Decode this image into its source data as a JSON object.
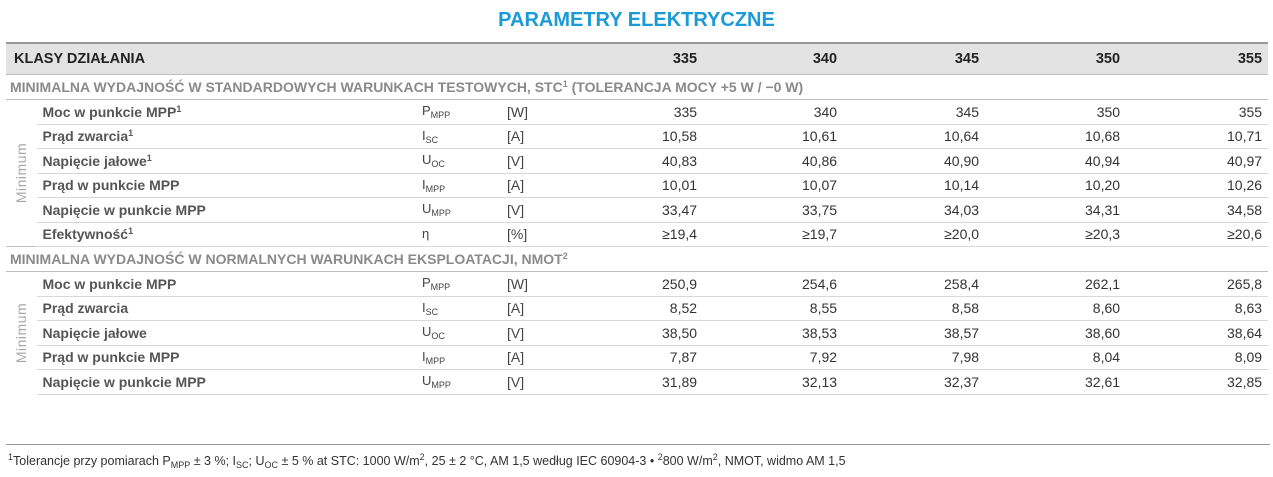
{
  "title": "PARAMETRY ELEKTRYCZNE",
  "header": {
    "label": "KLASY DZIAŁANIA",
    "classes": [
      "335",
      "340",
      "345",
      "350",
      "355"
    ]
  },
  "sections": [
    {
      "title": "MINIMALNA WYDAJNOŚĆ W STANDARDOWYCH WARUNKACH TESTOWYCH, STC",
      "title_sup": "1",
      "title_suffix": " (TOLERANCJA MOCY +5 W / −0 W)",
      "side_label": "Minimum",
      "rows": [
        {
          "name": "Moc w punkcie MPP",
          "sup": "1",
          "sym": "P",
          "sub": "MPP",
          "unit": "[W]",
          "values": [
            "335",
            "340",
            "345",
            "350",
            "355"
          ]
        },
        {
          "name": "Prąd zwarcia",
          "sup": "1",
          "sym": "I",
          "sub": "SC",
          "unit": "[A]",
          "values": [
            "10,58",
            "10,61",
            "10,64",
            "10,68",
            "10,71"
          ]
        },
        {
          "name": "Napięcie jałowe",
          "sup": "1",
          "sym": "U",
          "sub": "OC",
          "unit": "[V]",
          "values": [
            "40,83",
            "40,86",
            "40,90",
            "40,94",
            "40,97"
          ]
        },
        {
          "name": "Prąd w punkcie MPP",
          "sup": "",
          "sym": "I",
          "sub": "MPP",
          "unit": "[A]",
          "values": [
            "10,01",
            "10,07",
            "10,14",
            "10,20",
            "10,26"
          ]
        },
        {
          "name": "Napięcie w punkcie MPP",
          "sup": "",
          "sym": "U",
          "sub": "MPP",
          "unit": "[V]",
          "values": [
            "33,47",
            "33,75",
            "34,03",
            "34,31",
            "34,58"
          ]
        },
        {
          "name": "Efektywność",
          "sup": "1",
          "sym": "η",
          "sub": "",
          "unit": "[%]",
          "values": [
            "≥19,4",
            "≥19,7",
            "≥20,0",
            "≥20,3",
            "≥20,6"
          ]
        }
      ]
    },
    {
      "title": "MINIMALNA WYDAJNOŚĆ W NORMALNYCH WARUNKACH EKSPLOATACJI, NMOT",
      "title_sup": "2",
      "title_suffix": "",
      "side_label": "Minimum",
      "rows": [
        {
          "name": "Moc w punkcie MPP",
          "sup": "",
          "sym": "P",
          "sub": "MPP",
          "unit": "[W]",
          "values": [
            "250,9",
            "254,6",
            "258,4",
            "262,1",
            "265,8"
          ]
        },
        {
          "name": "Prąd zwarcia",
          "sup": "",
          "sym": "I",
          "sub": "SC",
          "unit": "[A]",
          "values": [
            "8,52",
            "8,55",
            "8,58",
            "8,60",
            "8,63"
          ]
        },
        {
          "name": "Napięcie jałowe",
          "sup": "",
          "sym": "U",
          "sub": "OC",
          "unit": "[V]",
          "values": [
            "38,50",
            "38,53",
            "38,57",
            "38,60",
            "38,64"
          ]
        },
        {
          "name": "Prąd w punkcie MPP",
          "sup": "",
          "sym": "I",
          "sub": "MPP",
          "unit": "[A]",
          "values": [
            "7,87",
            "7,92",
            "7,98",
            "8,04",
            "8,09"
          ]
        },
        {
          "name": "Napięcie w punkcie MPP",
          "sup": "",
          "sym": "U",
          "sub": "MPP",
          "unit": "[V]",
          "values": [
            "31,89",
            "32,13",
            "32,37",
            "32,61",
            "32,85"
          ]
        }
      ]
    }
  ],
  "footnote": {
    "m1": "1",
    "t1": "Tolerancje przy pomiarach P",
    "s1": "MPP",
    "t2": " ± 3 %; I",
    "s2": "SC",
    "t3": "; U",
    "s3": "OC",
    "t4": " ± 5 % at STC: 1000 W/m",
    "p1": "2",
    "t5": ", 25 ± 2 °C, AM 1,5 według IEC 60904-3 • ",
    "m2": "2",
    "t6": "800 W/m",
    "p2": "2",
    "t7": ", NMOT, widmo AM 1,5"
  }
}
